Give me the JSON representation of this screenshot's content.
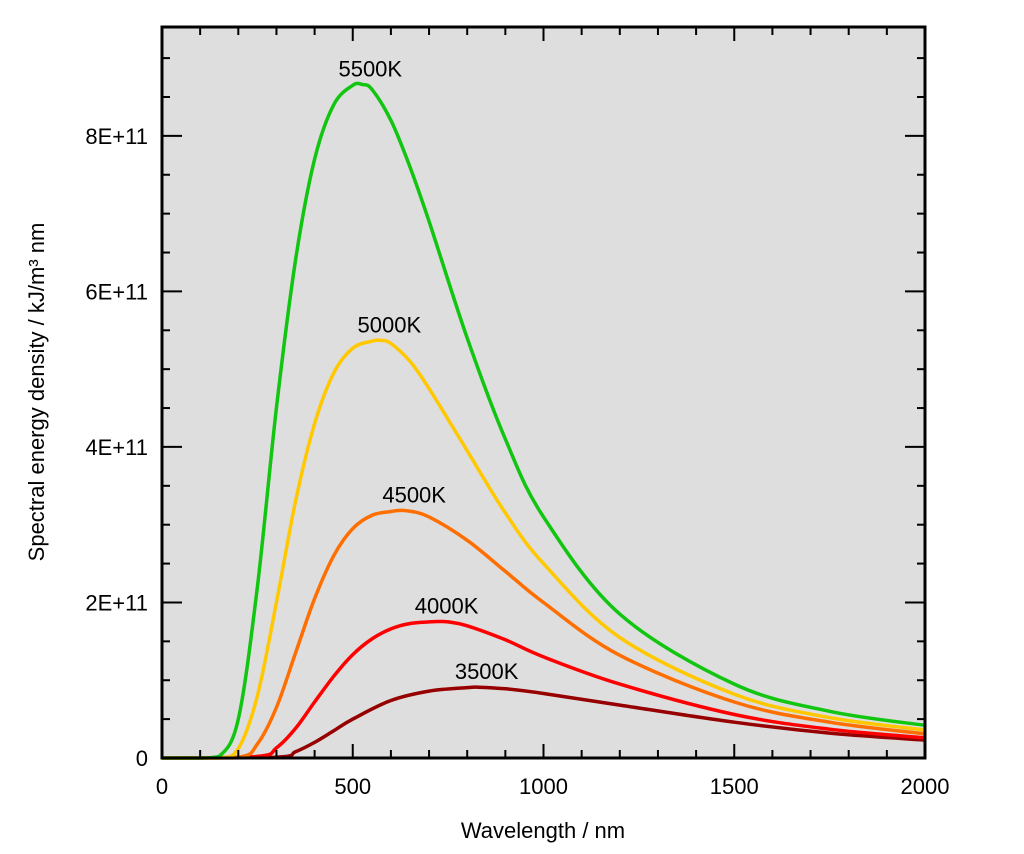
{
  "chart_data": {
    "type": "line",
    "title": "",
    "xlabel": "Wavelength / nm",
    "ylabel": "Spectral energy density / kJ/m³ nm",
    "xlim": [
      0,
      2000
    ],
    "ylim": [
      0,
      940000000000.0
    ],
    "x_ticks": [
      0,
      500,
      1000,
      1500,
      2000
    ],
    "x_tick_labels": [
      "0",
      "500",
      "1000",
      "1500",
      "2000"
    ],
    "y_ticks": [
      0,
      200000000000.0,
      400000000000.0,
      600000000000.0,
      800000000000.0
    ],
    "y_tick_labels": [
      "0",
      "2E+11",
      "4E+11",
      "6E+11",
      "8E+11"
    ],
    "grid": false,
    "background": "#dedede",
    "series": [
      {
        "name": "5500K",
        "color": "#11c511",
        "x": [
          0,
          100,
          150,
          200,
          250,
          300,
          350,
          400,
          450,
          500,
          525,
          550,
          600,
          650,
          700,
          800,
          900,
          1000,
          1200,
          1500,
          1750,
          2000
        ],
        "y": [
          0,
          0,
          2000000000.0,
          50000000000.0,
          220000000000.0,
          450000000000.0,
          640000000000.0,
          770000000000.0,
          840000000000.0,
          865000000000.0,
          866000000000.0,
          860000000000.0,
          820000000000.0,
          760000000000.0,
          690000000000.0,
          540000000000.0,
          410000000000.0,
          310000000000.0,
          185000000000.0,
          95000000000.0,
          60000000000.0,
          42000000000.0
        ]
      },
      {
        "name": "5000K",
        "color": "#ffc800",
        "x": [
          0,
          150,
          200,
          250,
          300,
          350,
          400,
          450,
          500,
          550,
          575,
          600,
          650,
          700,
          800,
          900,
          1000,
          1200,
          1500,
          1750,
          2000
        ],
        "y": [
          0,
          0,
          12000000000.0,
          80000000000.0,
          200000000000.0,
          330000000000.0,
          430000000000.0,
          495000000000.0,
          527000000000.0,
          536000000000.0,
          537000000000.0,
          533000000000.0,
          510000000000.0,
          475000000000.0,
          395000000000.0,
          315000000000.0,
          250000000000.0,
          155000000000.0,
          82000000000.0,
          52000000000.0,
          36000000000.0
        ]
      },
      {
        "name": "4500K",
        "color": "#ff6e00",
        "x": [
          0,
          200,
          250,
          300,
          350,
          400,
          450,
          500,
          550,
          600,
          640,
          700,
          800,
          900,
          1000,
          1200,
          1500,
          1750,
          2000
        ],
        "y": [
          0,
          1000000000.0,
          18000000000.0,
          65000000000.0,
          135000000000.0,
          205000000000.0,
          260000000000.0,
          295000000000.0,
          312000000000.0,
          317000000000.0,
          318000000000.0,
          310000000000.0,
          280000000000.0,
          240000000000.0,
          200000000000.0,
          132000000000.0,
          72000000000.0,
          46000000000.0,
          31000000000.0
        ]
      },
      {
        "name": "4000K",
        "color": "#ff0000",
        "x": [
          0,
          250,
          300,
          350,
          400,
          450,
          500,
          550,
          600,
          650,
          700,
          725,
          750,
          800,
          900,
          1000,
          1200,
          1500,
          1750,
          2000
        ],
        "y": [
          0,
          2000000000.0,
          13000000000.0,
          38000000000.0,
          72000000000.0,
          105000000000.0,
          133000000000.0,
          153000000000.0,
          166000000000.0,
          173000000000.0,
          175000000000.0,
          175500000000.0,
          175000000000.0,
          170000000000.0,
          152000000000.0,
          130000000000.0,
          95000000000.0,
          56000000000.0,
          37000000000.0,
          26000000000.0
        ]
      },
      {
        "name": "3500K",
        "color": "#960000",
        "x": [
          0,
          300,
          350,
          400,
          450,
          500,
          600,
          700,
          800,
          830,
          900,
          1000,
          1200,
          1500,
          1750,
          2000
        ],
        "y": [
          0,
          1000000000.0,
          8000000000.0,
          20000000000.0,
          35000000000.0,
          50000000000.0,
          74000000000.0,
          86000000000.0,
          90500000000.0,
          91000000000.0,
          89000000000.0,
          83000000000.0,
          68000000000.0,
          46000000000.0,
          32000000000.0,
          23000000000.0
        ]
      }
    ]
  }
}
